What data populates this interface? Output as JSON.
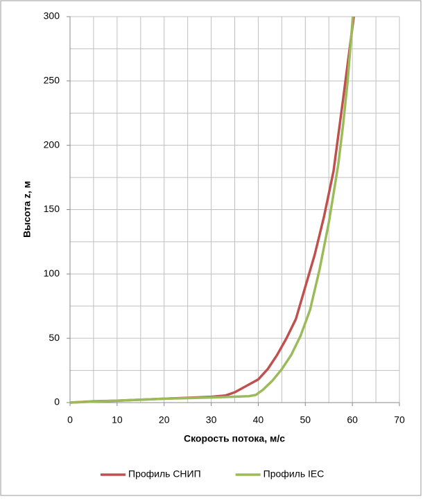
{
  "chart_data": {
    "type": "line",
    "x_label": "Скорость потока, м/с",
    "y_label": "Высота z, м",
    "xlim": [
      0,
      70
    ],
    "xticks": [
      0,
      10,
      20,
      30,
      40,
      50,
      60,
      70
    ],
    "ylim": [
      0,
      300
    ],
    "yticks": [
      0,
      50,
      100,
      150,
      200,
      250,
      300
    ],
    "x_minor_gridlines": [
      5,
      15,
      25,
      35,
      45,
      55,
      65
    ],
    "y_minor_gridlines": [
      25,
      75,
      125,
      175,
      225,
      275
    ],
    "grid": true,
    "legend": "bottom",
    "series": [
      {
        "name": "Профиль СНИП",
        "color": "#c0504d",
        "x": [
          0,
          5,
          10,
          20,
          30,
          33,
          35,
          38,
          40,
          42,
          44,
          46,
          48,
          50,
          52,
          54,
          56,
          58,
          60.3
        ],
        "values": [
          0,
          1,
          1.5,
          3,
          4.5,
          5.5,
          8,
          14,
          18,
          26,
          37,
          50,
          65,
          90,
          115,
          145,
          180,
          235,
          300
        ]
      },
      {
        "name": "Профиль IEC",
        "color": "#9bbb59",
        "x": [
          0,
          10,
          20,
          30,
          38,
          39.5,
          41,
          43,
          45,
          47,
          49,
          51,
          53,
          55,
          57,
          58,
          59,
          60.1
        ],
        "values": [
          0,
          1.5,
          3,
          4,
          5,
          6,
          10,
          17,
          26,
          37,
          52,
          72,
          103,
          140,
          185,
          215,
          250,
          300
        ]
      }
    ]
  }
}
